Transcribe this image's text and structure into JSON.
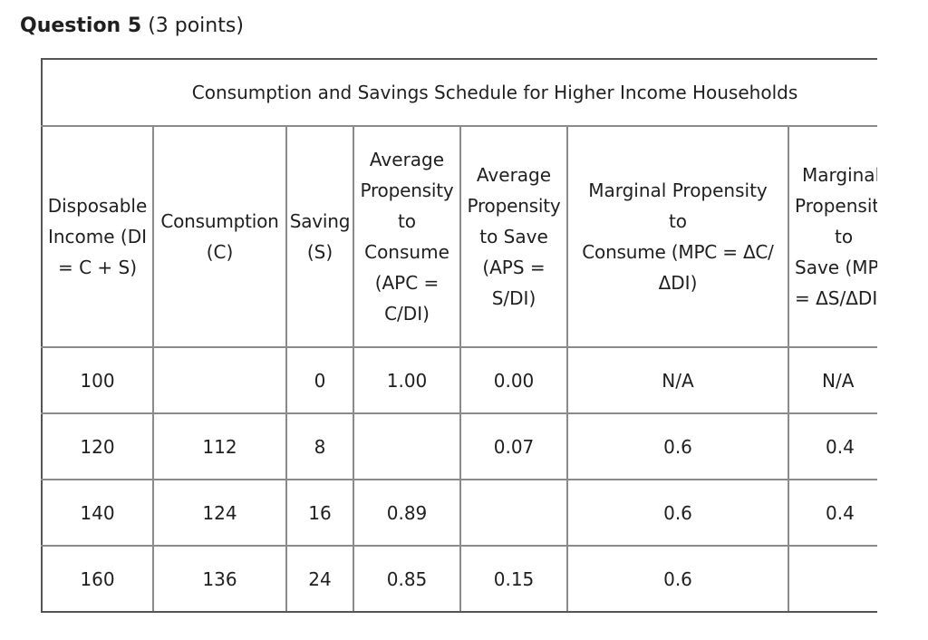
{
  "question": {
    "title": "Question 5",
    "points": "(3 points)"
  },
  "table": {
    "caption": "Consumption and Savings Schedule for Higher Income Households",
    "headers": {
      "di": [
        "Disposable",
        "Income (DI",
        "= C + S)"
      ],
      "c": [
        "Consumption",
        "(C)"
      ],
      "s": [
        "Saving",
        "(S)"
      ],
      "apc": [
        "Average",
        "Propensity",
        "to",
        "Consume",
        "(APC =",
        "C/DI)"
      ],
      "aps": [
        "Average",
        "Propensity",
        "to Save",
        "(APS =",
        "S/DI)"
      ],
      "mpc": [
        "Marginal Propensity",
        "to",
        "Consume (MPC = ΔC/",
        "ΔDI)"
      ],
      "mps": [
        "Marginal",
        "Propensity",
        "to",
        "Save (MPS",
        "= ΔS/ΔDI)"
      ]
    },
    "rows": [
      {
        "di": "100",
        "c": "",
        "s": "0",
        "apc": "1.00",
        "aps": "0.00",
        "mpc": "N/A",
        "mps": "N/A"
      },
      {
        "di": "120",
        "c": "112",
        "s": "8",
        "apc": "",
        "aps": "0.07",
        "mpc": "0.6",
        "mps": "0.4"
      },
      {
        "di": "140",
        "c": "124",
        "s": "16",
        "apc": "0.89",
        "aps": "",
        "mpc": "0.6",
        "mps": "0.4"
      },
      {
        "di": "160",
        "c": "136",
        "s": "24",
        "apc": "0.85",
        "aps": "0.15",
        "mpc": "0.6",
        "mps": ""
      }
    ]
  }
}
